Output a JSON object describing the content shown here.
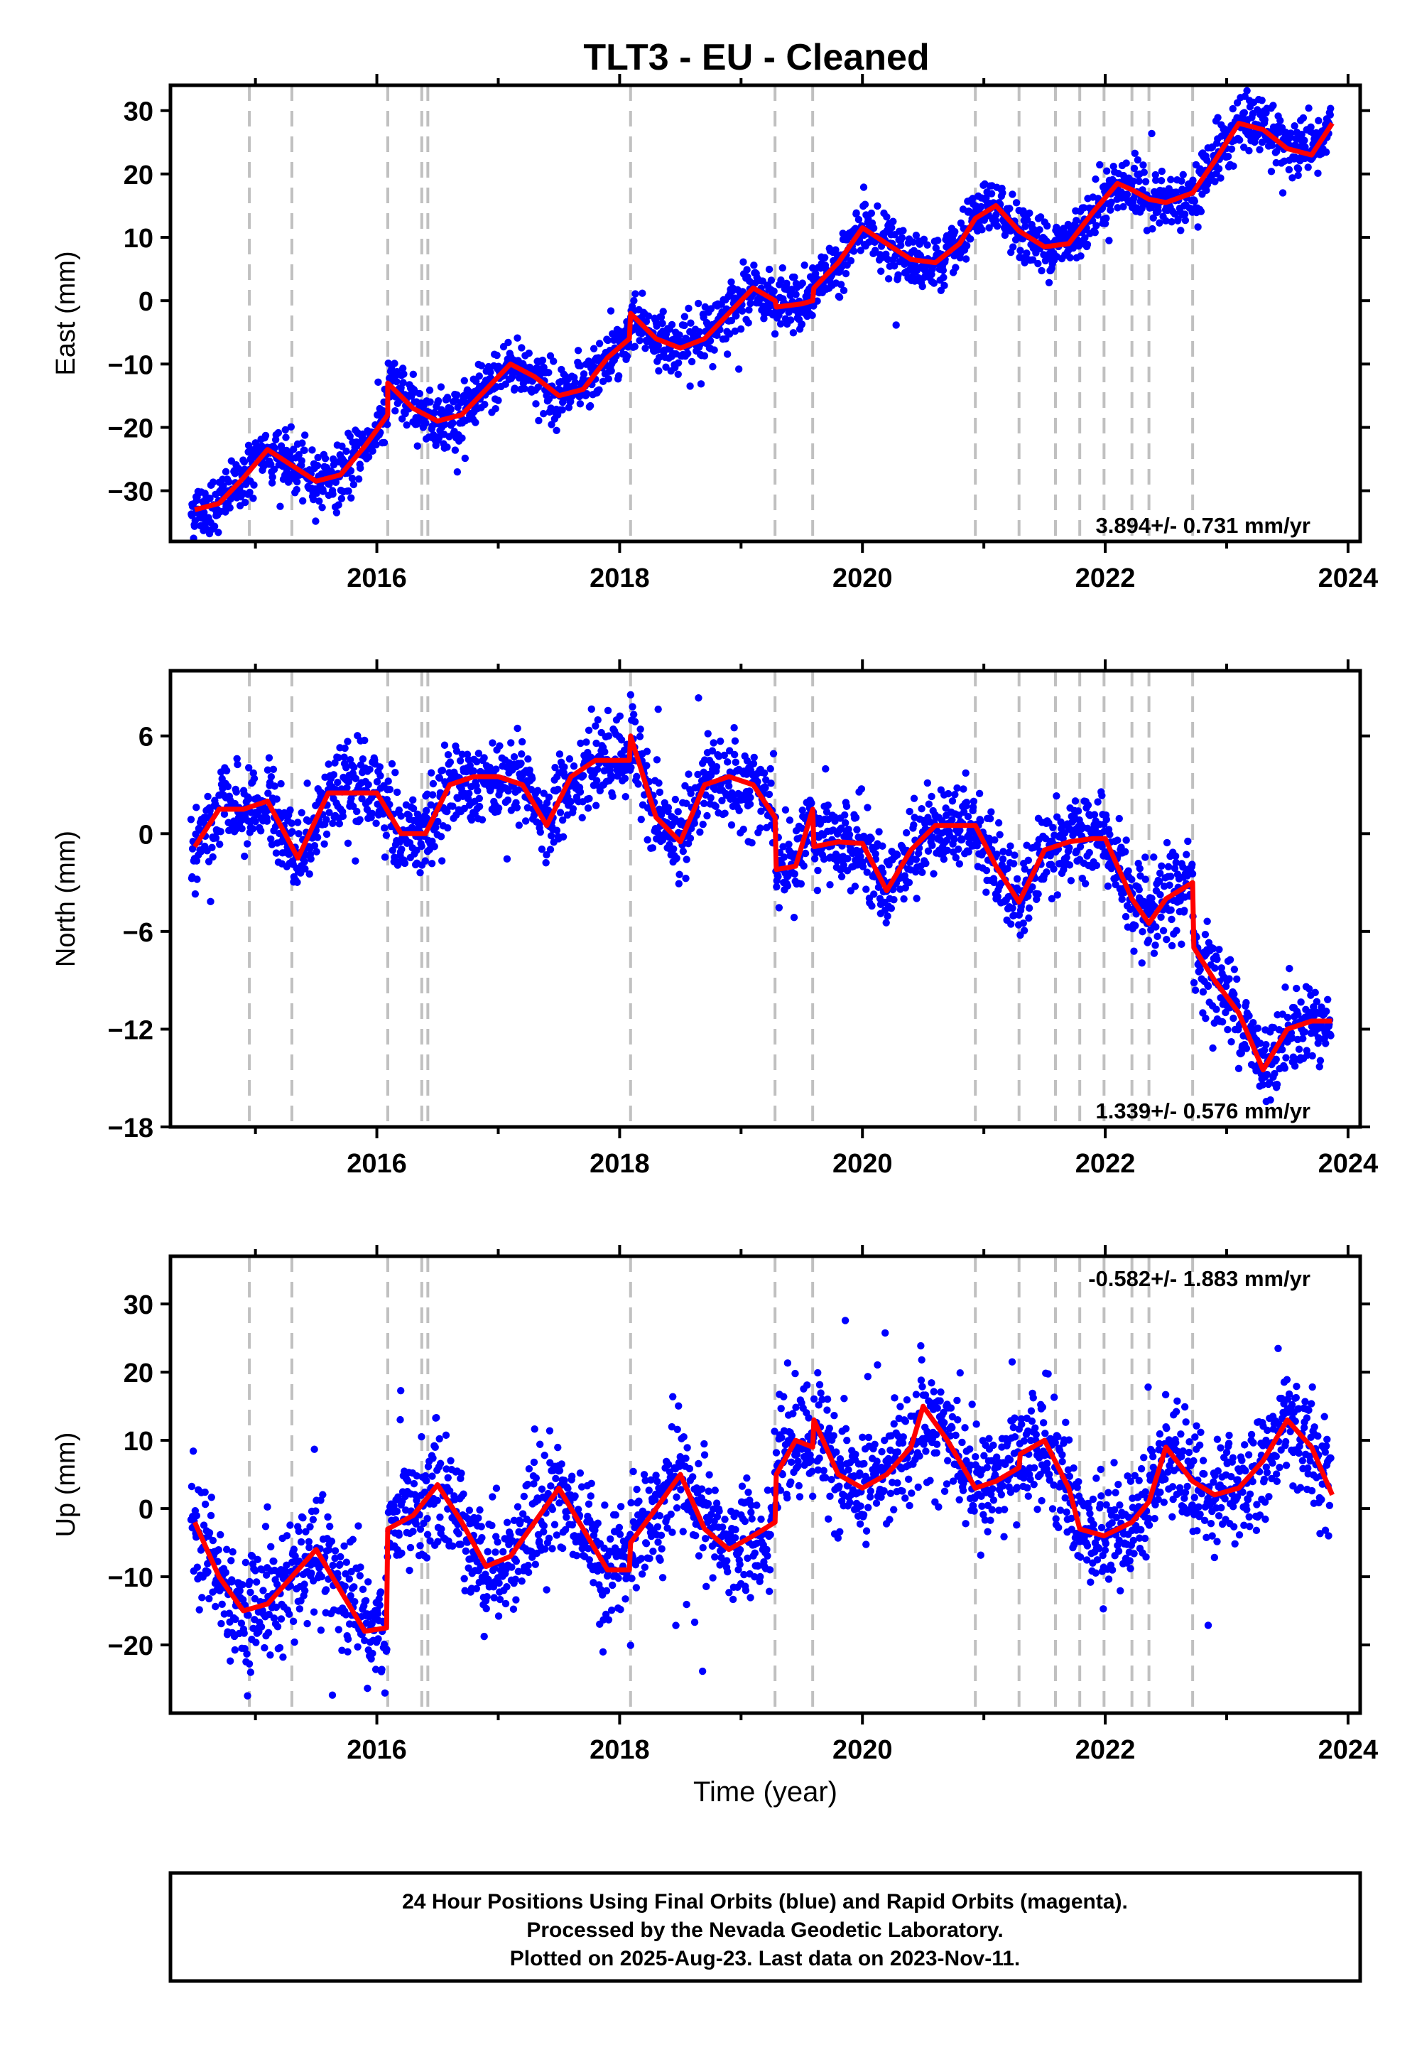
{
  "title": "TLT3  - EU - Cleaned",
  "footer": {
    "lines": [
      "24 Hour Positions Using Final Orbits (blue) and Rapid Orbits (magenta).",
      "Processed by the Nevada Geodetic Laboratory.",
      "Plotted on 2025-Aug-23. Last data on 2023-Nov-11."
    ]
  },
  "colors": {
    "data_points": "#0000ff",
    "model_line": "#ff0000",
    "event_lines": "#c0c0c0",
    "axes": "#000000"
  },
  "chart_data": [
    {
      "type": "scatter",
      "ylabel": "East (mm)",
      "xlabel": "",
      "xlim": [
        2014.3,
        2024.1
      ],
      "ylim": [
        -38,
        34
      ],
      "yticks": [
        -30,
        -20,
        -10,
        0,
        10,
        20,
        30
      ],
      "xticks": [
        2016,
        2018,
        2020,
        2022,
        2024
      ],
      "rate_label": "3.894+/- 0.731 mm/yr",
      "rate_position": "bottom-right",
      "event_lines": [
        2014.95,
        2015.3,
        2016.09,
        2016.37,
        2016.42,
        2018.09,
        2019.28,
        2019.59,
        2020.93,
        2021.29,
        2021.59,
        2021.79,
        2021.99,
        2022.22,
        2022.36,
        2022.72
      ],
      "model": {
        "x": [
          2014.5,
          2014.7,
          2014.9,
          2015.1,
          2015.3,
          2015.5,
          2015.7,
          2015.9,
          2016.09,
          2016.09,
          2016.3,
          2016.5,
          2016.7,
          2016.9,
          2017.1,
          2017.3,
          2017.5,
          2017.7,
          2017.9,
          2018.08,
          2018.09,
          2018.3,
          2018.5,
          2018.7,
          2018.9,
          2019.1,
          2019.28,
          2019.29,
          2019.5,
          2019.59,
          2019.6,
          2019.8,
          2020.0,
          2020.2,
          2020.4,
          2020.6,
          2020.8,
          2020.93,
          2021.1,
          2021.29,
          2021.5,
          2021.7,
          2021.9,
          2022.1,
          2022.22,
          2022.36,
          2022.5,
          2022.72,
          2022.9,
          2023.1,
          2023.3,
          2023.5,
          2023.7,
          2023.87
        ],
        "y": [
          -33,
          -32,
          -28,
          -23.5,
          -26,
          -28.5,
          -27.5,
          -23,
          -18,
          -13,
          -17,
          -19,
          -18,
          -14,
          -10,
          -12,
          -15,
          -14,
          -9,
          -6,
          -2,
          -6,
          -7.5,
          -6,
          -2,
          2,
          0,
          -1,
          -0.5,
          0,
          2,
          6,
          11.5,
          9,
          6.5,
          6,
          9,
          13,
          15,
          11,
          8.5,
          9,
          14,
          18.5,
          17.5,
          16,
          15.5,
          17,
          22,
          28,
          27,
          24,
          23,
          28
        ]
      },
      "points_model": "dense daily scatter around the model curve, roughly ±3 mm"
    },
    {
      "type": "scatter",
      "ylabel": "North (mm)",
      "xlabel": "",
      "xlim": [
        2014.3,
        2024.1
      ],
      "ylim": [
        -18,
        10
      ],
      "yticks": [
        -18,
        -12,
        -6,
        0,
        6
      ],
      "xticks": [
        2016,
        2018,
        2020,
        2022,
        2024
      ],
      "rate_label": "1.339+/- 0.576 mm/yr",
      "rate_position": "bottom-right",
      "event_lines": [
        2014.95,
        2015.3,
        2016.09,
        2016.37,
        2016.42,
        2018.09,
        2019.28,
        2019.59,
        2020.93,
        2021.29,
        2021.59,
        2021.79,
        2021.99,
        2022.22,
        2022.36,
        2022.72
      ],
      "model": {
        "x": [
          2014.5,
          2014.7,
          2014.9,
          2015.1,
          2015.35,
          2015.6,
          2015.8,
          2016.0,
          2016.2,
          2016.4,
          2016.6,
          2016.8,
          2017.0,
          2017.2,
          2017.4,
          2017.6,
          2017.8,
          2018.0,
          2018.08,
          2018.09,
          2018.3,
          2018.5,
          2018.7,
          2018.9,
          2019.1,
          2019.28,
          2019.29,
          2019.45,
          2019.59,
          2019.6,
          2019.8,
          2020.0,
          2020.2,
          2020.4,
          2020.6,
          2020.8,
          2020.93,
          2021.1,
          2021.29,
          2021.5,
          2021.7,
          2021.9,
          2022.0,
          2022.22,
          2022.36,
          2022.5,
          2022.72,
          2022.73,
          2022.9,
          2023.1,
          2023.3,
          2023.5,
          2023.7,
          2023.87
        ],
        "y": [
          -0.8,
          1.5,
          1.5,
          2,
          -1.5,
          2.5,
          2.5,
          2.5,
          0,
          0,
          3,
          3.5,
          3.5,
          3,
          0.5,
          3.5,
          4.5,
          4.5,
          4.5,
          6,
          1,
          -0.5,
          3,
          3.5,
          3,
          1,
          -2.2,
          -2,
          1.5,
          -0.8,
          -0.5,
          -0.6,
          -3.5,
          -1,
          0.5,
          0.5,
          0.5,
          -2,
          -4.2,
          -1,
          -0.5,
          -0.3,
          -0.3,
          -4,
          -5.5,
          -4,
          -3,
          -7,
          -9,
          -11,
          -14.5,
          -12,
          -11.5,
          -11.5
        ]
      },
      "points_model": "dense daily scatter around the model curve, roughly ±1.5 mm"
    },
    {
      "type": "scatter",
      "ylabel": "Up (mm)",
      "xlabel": "Time (year)",
      "xlim": [
        2014.3,
        2024.1
      ],
      "ylim": [
        -30,
        37
      ],
      "yticks": [
        -20,
        -10,
        0,
        10,
        20,
        30
      ],
      "xticks": [
        2016,
        2018,
        2020,
        2022,
        2024
      ],
      "rate_label": "-0.582+/- 1.883 mm/yr",
      "rate_position": "top-right",
      "event_lines": [
        2014.95,
        2015.3,
        2016.09,
        2016.37,
        2016.42,
        2018.09,
        2019.28,
        2019.59,
        2020.93,
        2021.29,
        2021.59,
        2021.79,
        2021.99,
        2022.22,
        2022.36,
        2022.72
      ],
      "model": {
        "x": [
          2014.5,
          2014.7,
          2014.9,
          2015.1,
          2015.3,
          2015.5,
          2015.7,
          2015.9,
          2016.08,
          2016.09,
          2016.3,
          2016.5,
          2016.7,
          2016.9,
          2017.1,
          2017.3,
          2017.5,
          2017.7,
          2017.9,
          2018.08,
          2018.09,
          2018.3,
          2018.5,
          2018.7,
          2018.9,
          2019.1,
          2019.28,
          2019.29,
          2019.45,
          2019.59,
          2019.6,
          2019.8,
          2020.0,
          2020.2,
          2020.4,
          2020.5,
          2020.7,
          2020.93,
          2021.1,
          2021.29,
          2021.3,
          2021.5,
          2021.7,
          2021.79,
          2021.99,
          2022.22,
          2022.36,
          2022.5,
          2022.72,
          2022.9,
          2023.1,
          2023.3,
          2023.5,
          2023.7,
          2023.87
        ],
        "y": [
          -2,
          -10,
          -15,
          -14,
          -10,
          -6,
          -12,
          -18,
          -17.5,
          -3,
          -1,
          3.5,
          -2,
          -8.5,
          -7,
          -2,
          3,
          -3,
          -9,
          -9,
          -5,
          0,
          5,
          -3,
          -6,
          -4,
          -2,
          5,
          10,
          9,
          13,
          5,
          3,
          5,
          9,
          15,
          10,
          3,
          4,
          6,
          8,
          10,
          3,
          -3,
          -4,
          -2,
          1,
          9,
          4,
          2,
          3,
          7,
          13,
          9,
          2
        ]
      },
      "points_model": "dense daily scatter around the model curve, roughly ±5 mm with outliers"
    }
  ]
}
